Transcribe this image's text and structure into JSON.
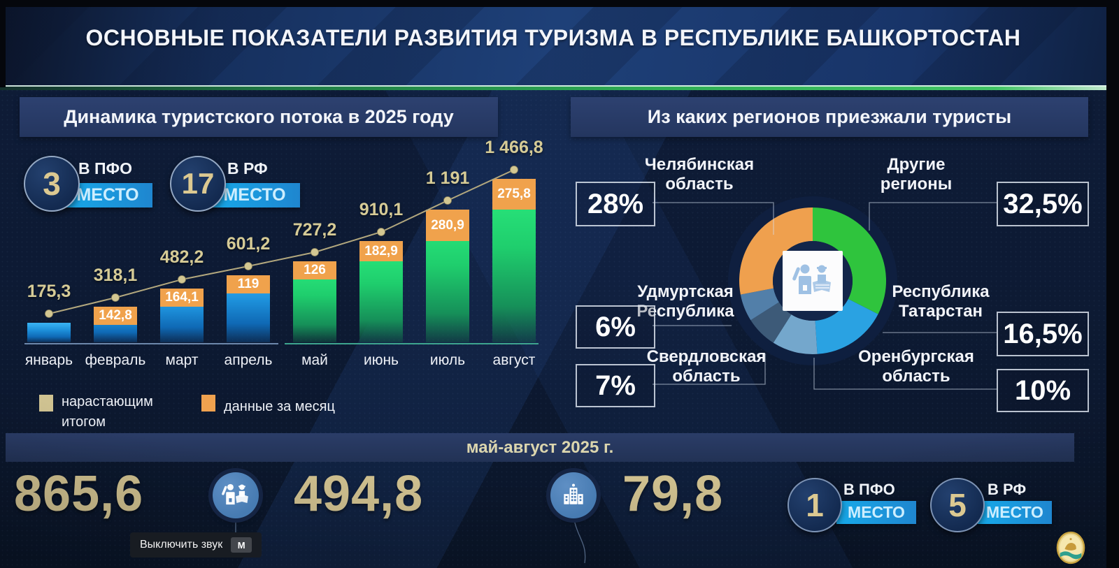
{
  "header": {
    "title": "ОСНОВНЫЕ ПОКАЗАТЕЛИ РАЗВИТИЯ ТУРИЗМА В РЕСПУБЛИКЕ БАШКОРТОСТАН"
  },
  "left_panel": {
    "title": "Динамика туристского потока в 2025 году",
    "rank_badges": [
      {
        "value": "3",
        "scope": "В ПФО",
        "place_label": "МЕСТО"
      },
      {
        "value": "17",
        "scope": "В РФ",
        "place_label": "МЕСТО"
      }
    ],
    "legend": [
      {
        "swatch_color": "#cfc291",
        "label": "нарастающим итогом"
      },
      {
        "swatch_color": "#f0a24f",
        "label": "данные за месяц"
      }
    ]
  },
  "right_panel": {
    "title": "Из каких регионов приезжали туристы"
  },
  "bottom": {
    "period": "май-август 2025 г.",
    "stats": [
      {
        "value": "865,6"
      },
      {
        "value": "494,8"
      },
      {
        "value": "79,8"
      }
    ],
    "rank_badges": [
      {
        "value": "1",
        "scope": "В ПФО",
        "place_label": "МЕСТО"
      },
      {
        "value": "5",
        "scope": "В РФ",
        "place_label": "МЕСТО"
      }
    ]
  },
  "player_tooltip": {
    "label": "Выключить звук",
    "shortcut": "M"
  },
  "icons": {
    "stat_divider_1": "tourists-people-icon",
    "stat_divider_2": "hotel-building-icon",
    "donut_center": "tourists-people-icon",
    "bottom_right": "bashkortostan-emblem"
  },
  "colors": {
    "gold_text": "#cfc08f",
    "ribbon_blue": "#18a4e6",
    "bar_blue": "#1f97e0",
    "bar_green": "#24dc74",
    "monthly_orange": "#f0a24f",
    "cumulative_line": "#b3a87e"
  },
  "chart_data": [
    {
      "type": "bar",
      "title": "Динамика туристского потока в 2025 году",
      "categories": [
        "январь",
        "февраль",
        "март",
        "апрель",
        "май",
        "июнь",
        "июль",
        "август"
      ],
      "series": [
        {
          "name": "нарастающим итогом",
          "role": "line",
          "values": [
            175.3,
            318.1,
            482.2,
            601.2,
            727.2,
            910.1,
            1191,
            1466.8
          ],
          "labels": [
            "175,3",
            "318,1",
            "482,2",
            "601,2",
            "727,2",
            "910,1",
            "1 191",
            "1 466,8"
          ]
        },
        {
          "name": "данные за месяц",
          "role": "bar-top-segment",
          "values": [
            null,
            142.8,
            164.1,
            119,
            126,
            182.9,
            280.9,
            275.8
          ],
          "labels": [
            "",
            "142,8",
            "164,1",
            "119",
            "126",
            "182,9",
            "280,9",
            "275,8"
          ]
        }
      ],
      "bar_base_colors": {
        "jan_apr": "#1f97e0",
        "may_aug": "#24dc74"
      },
      "monthly_color": "#f0a24f",
      "xlabel": "",
      "ylabel": "",
      "ylim": [
        0,
        1466.8
      ],
      "grid": false
    },
    {
      "type": "pie",
      "title": "Из каких регионов приезжали туристы",
      "slices": [
        {
          "label": "Другие регионы",
          "value": 32.5,
          "display": "32,5%",
          "color": "#2fc43d"
        },
        {
          "label": "Республика Татарстан",
          "value": 16.5,
          "display": "16,5%",
          "color": "#2aa2e2"
        },
        {
          "label": "Оренбургская область",
          "value": 10,
          "display": "10%",
          "color": "#74a7cc"
        },
        {
          "label": "Свердловская область",
          "value": 7,
          "display": "7%",
          "color": "#3d5a78"
        },
        {
          "label": "Удмуртская Республика",
          "value": 6,
          "display": "6%",
          "color": "#527fa9"
        },
        {
          "label": "Челябинская область",
          "value": 28,
          "display": "28%",
          "color": "#efa04e"
        }
      ],
      "start_angle_deg": -90,
      "direction": "clockwise",
      "legend_position": "callout-boxes"
    }
  ]
}
